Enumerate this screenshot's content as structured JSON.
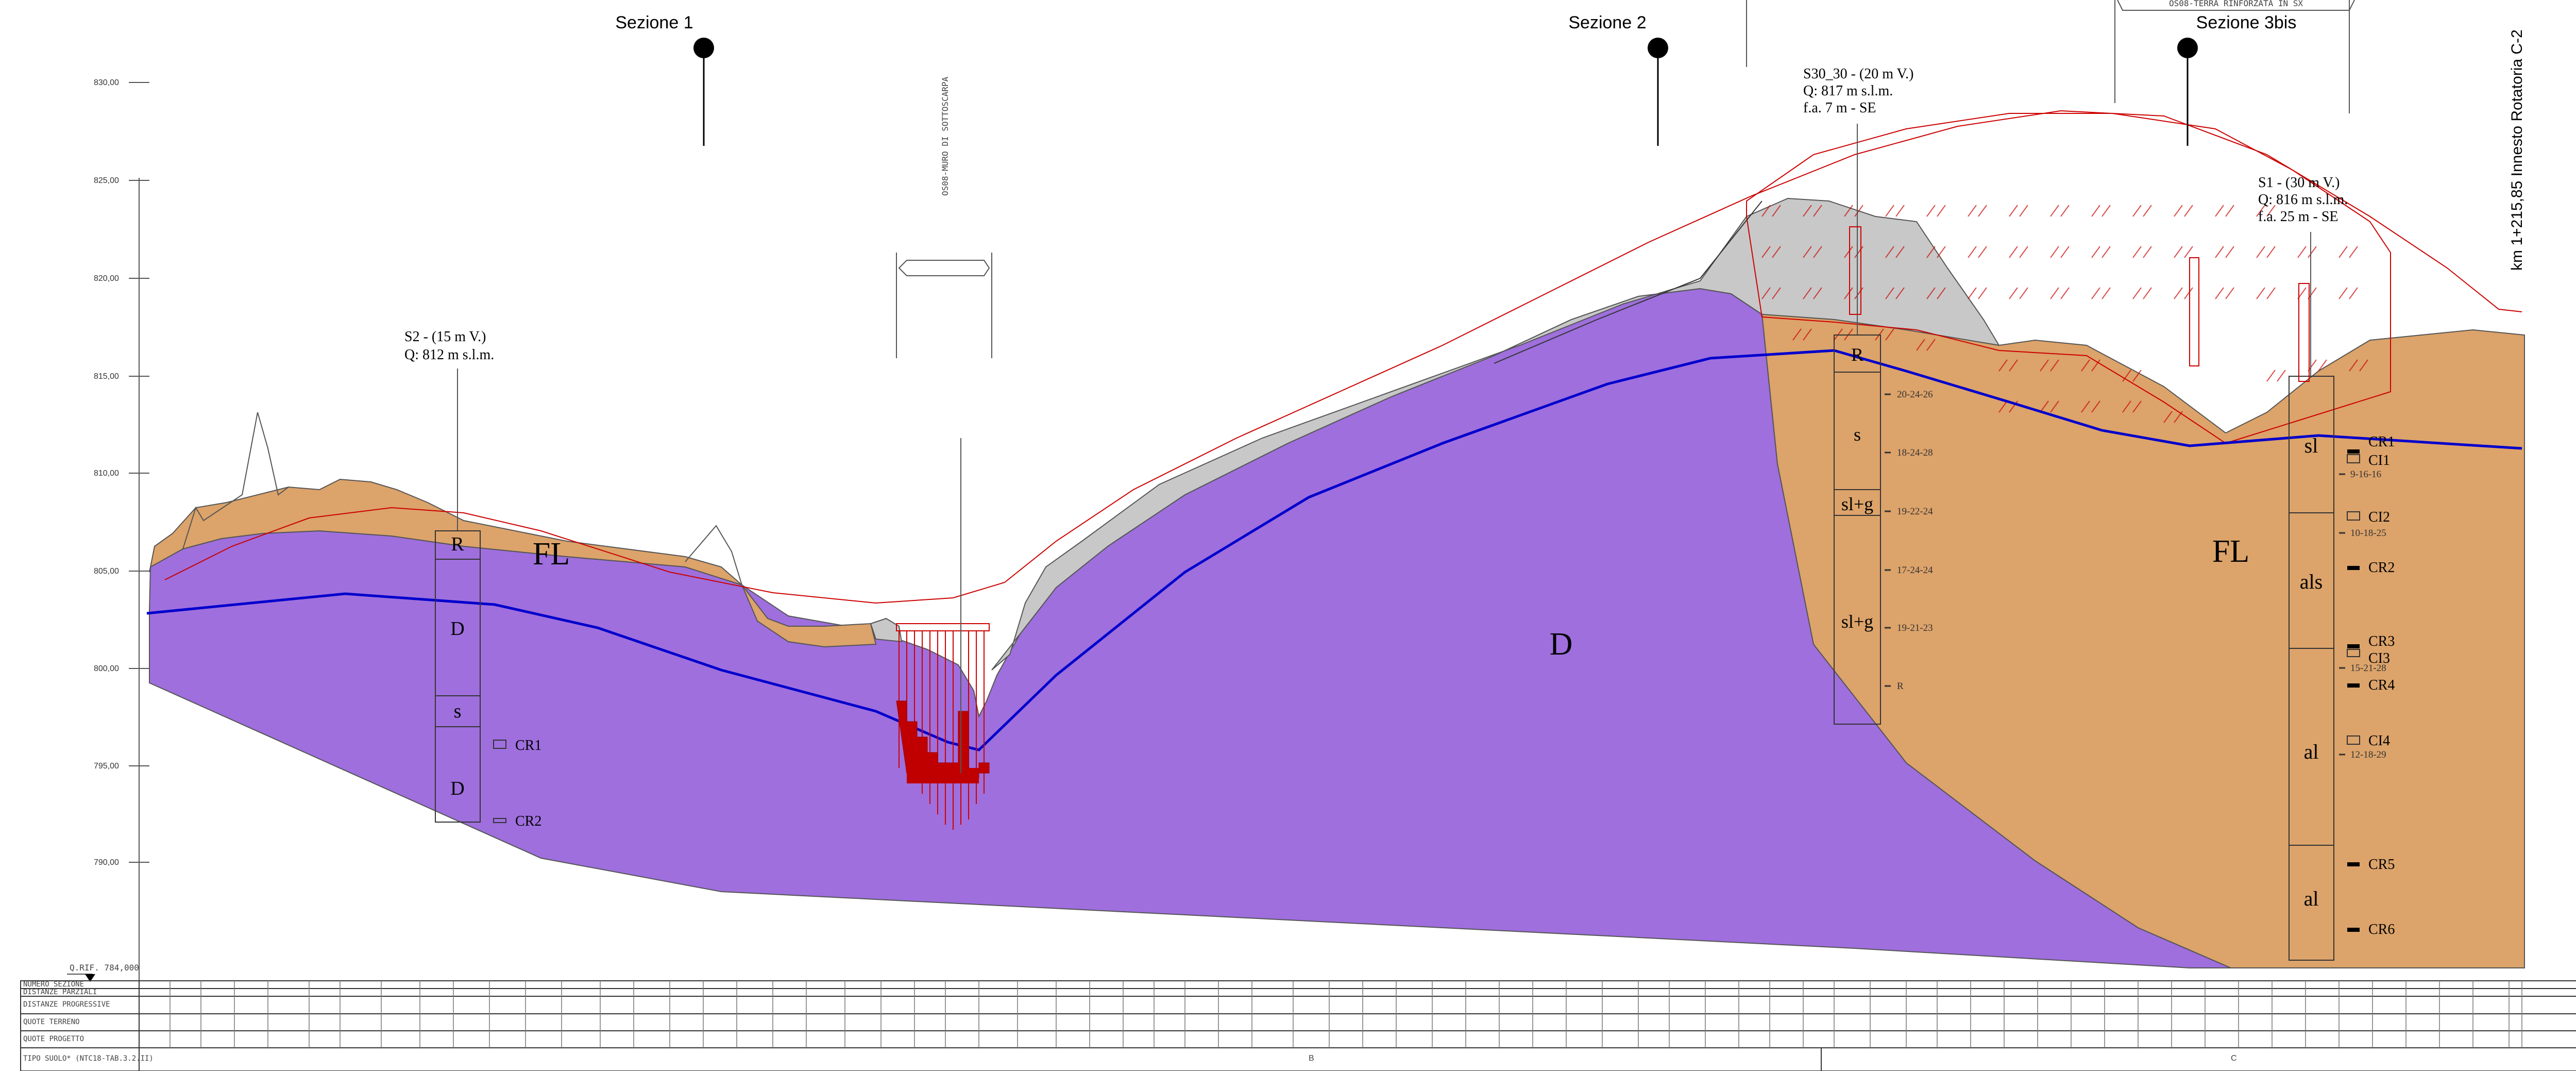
{
  "sections": {
    "s1": "Sezione 1",
    "s2": "Sezione 2",
    "s3": "Sezione 3bis"
  },
  "elevations": [
    "830,00",
    "825,00",
    "820,00",
    "815,00",
    "810,00",
    "805,00",
    "800,00",
    "795,00",
    "790,00"
  ],
  "boreholes": {
    "s2": {
      "line1": "S2 - (15 m V.)",
      "line2": "Q: 812 m s.l.m.",
      "layers": [
        "R",
        "D",
        "s",
        "D"
      ],
      "samples": [
        "CR1",
        "CR2"
      ]
    },
    "s30": {
      "line1": "S30_30 - (20 m V.)",
      "line2": "Q: 817 m s.l.m.",
      "line3": "f.a. 7 m - SE",
      "layers": [
        "R",
        "s",
        "sl+g",
        "sl+g"
      ],
      "spt": [
        "20-24-26",
        "18-24-28",
        "19-22-24",
        "17-24-24",
        "19-21-23",
        "R"
      ]
    },
    "s1": {
      "line1": "S1 - (30 m V.)",
      "line2": "Q: 816 m s.l.m.",
      "line3": "f.a. 25 m - SE",
      "layers": [
        "sl",
        "als",
        "al",
        "al"
      ],
      "samples": [
        "CR1",
        "CI1",
        "CI2",
        "CR2",
        "CR3",
        "CI3",
        "CR4",
        "CI4",
        "CR5",
        "CR6"
      ],
      "spt": [
        "9-16-16",
        "10-18-25",
        "15-21-28",
        "12-18-29"
      ]
    }
  },
  "geology": {
    "fl_left": "FL",
    "fl_right": "FL",
    "d_label": "D"
  },
  "km_label": "km 1+215,85 Innesto Rotatoria C-2",
  "annotations": {
    "wall": "OS08-MURO DI SOTTOSCARPA",
    "reinforced": "OS08-TERRA RINFORZATA IN SX",
    "qrif": "Q.RIF. 784,000"
  },
  "table": {
    "rows": [
      "NUMERO SEZIONE",
      "DISTANZE PARZIALI",
      "DISTANZE PROGRESSIVE",
      "QUOTE TERRENO",
      "QUOTE PROGETTO",
      "TIPO SUOLO* (NTC18-TAB.3.2.II)"
    ],
    "soil_b": "B",
    "soil_c": "C"
  },
  "colors": {
    "purple": "#9e6fdd",
    "tan": "#dca36a",
    "grey": "#c8c8c8",
    "blue": "#0000cc",
    "red": "#cc0000"
  }
}
